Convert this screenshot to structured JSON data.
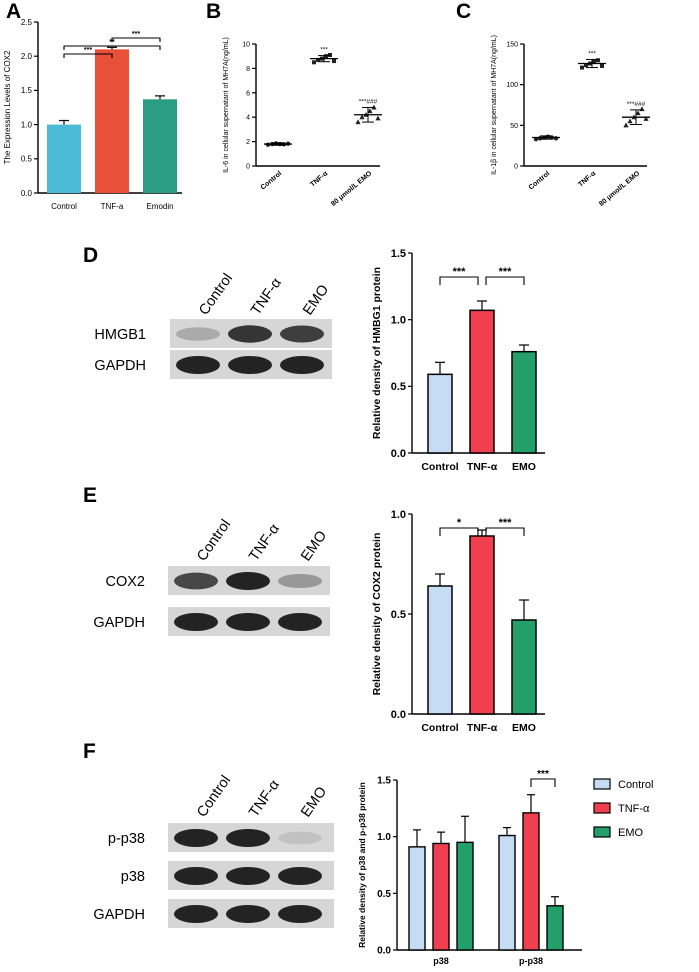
{
  "panel_letters": {
    "a": "A",
    "b": "B",
    "c": "C",
    "d": "D",
    "e": "E",
    "f": "F"
  },
  "colors": {
    "control": "#4cbbd5",
    "tnf": "#e8503a",
    "emodin": "#2a9d82",
    "light_blue": "#c5dcf4",
    "red": "#f04050",
    "green": "#23a06a",
    "dots": "#222222"
  },
  "chart_data": [
    {
      "panel": "A",
      "type": "bar",
      "ylabel": "The Expression Levels of COX2",
      "categories": [
        "Control",
        "TNF-a",
        "Emodin"
      ],
      "values": [
        1.0,
        2.1,
        1.37
      ],
      "errors": [
        0.06,
        0.03,
        0.05
      ],
      "colors": [
        "#4cbbd5",
        "#e8503a",
        "#2a9d82"
      ],
      "ylim": [
        0,
        2.5
      ],
      "yticks": [
        "0.0",
        "0.5",
        "1.0",
        "1.5",
        "2.0",
        "2.5"
      ],
      "significance": [
        {
          "from": 0,
          "to": 1,
          "label": "***"
        },
        {
          "from": 0,
          "to": 2,
          "label": "**"
        },
        {
          "from": 1,
          "to": 2,
          "label": "***"
        }
      ]
    },
    {
      "panel": "B",
      "type": "scatter",
      "ylabel": "IL-6 in cellular supernatant of MH7A(ng/mL)",
      "categories": [
        "Control",
        "TNF-α",
        "80 μmol/L EMO"
      ],
      "means": [
        1.8,
        8.8,
        4.2
      ],
      "sd": [
        0.1,
        0.25,
        0.6
      ],
      "points": [
        [
          1.75,
          1.8,
          1.85,
          1.8,
          1.78,
          1.83
        ],
        [
          8.5,
          8.7,
          8.8,
          9.0,
          9.1,
          8.6
        ],
        [
          3.6,
          4.0,
          4.2,
          4.5,
          4.8,
          3.9
        ]
      ],
      "markers": [
        "circle",
        "square",
        "triangle"
      ],
      "ylim": [
        0,
        10
      ],
      "yticks": [
        "0",
        "2",
        "4",
        "6",
        "8",
        "10"
      ],
      "annotations": [
        "",
        "***",
        "***###"
      ]
    },
    {
      "panel": "C",
      "type": "scatter",
      "ylabel": "IL-1β in cellular supernatant of MH7A(ng/mL)",
      "categories": [
        "Control",
        "TNF-α",
        "80 μmol/L EMO"
      ],
      "means": [
        35,
        126,
        60
      ],
      "sd": [
        2,
        5,
        9
      ],
      "points": [
        [
          33,
          34,
          35,
          36,
          35,
          34
        ],
        [
          121,
          124,
          126,
          128,
          130,
          123
        ],
        [
          50,
          55,
          60,
          65,
          70,
          58
        ]
      ],
      "markers": [
        "circle",
        "square",
        "triangle"
      ],
      "ylim": [
        0,
        150
      ],
      "yticks": [
        "0",
        "50",
        "100",
        "150"
      ],
      "annotations": [
        "",
        "***",
        "***###"
      ]
    },
    {
      "panel": "D",
      "type": "bar",
      "ylabel": "Relative density of HMBG1 protein",
      "categories": [
        "Control",
        "TNF-α",
        "EMO"
      ],
      "values": [
        0.59,
        1.07,
        0.76
      ],
      "errors": [
        0.09,
        0.07,
        0.05
      ],
      "colors": [
        "#c5dcf4",
        "#f04050",
        "#23a06a"
      ],
      "ylim": [
        0,
        1.5
      ],
      "yticks": [
        "0.0",
        "0.5",
        "1.0",
        "1.5"
      ],
      "significance": [
        {
          "from": 0,
          "to": 1,
          "label": "***"
        },
        {
          "from": 1,
          "to": 2,
          "label": "***"
        }
      ]
    },
    {
      "panel": "E",
      "type": "bar",
      "ylabel": "Relative density of COX2  protein",
      "categories": [
        "Control",
        "TNF-α",
        "EMO"
      ],
      "values": [
        0.64,
        0.89,
        0.47
      ],
      "errors": [
        0.06,
        0.03,
        0.1
      ],
      "colors": [
        "#c5dcf4",
        "#f04050",
        "#23a06a"
      ],
      "ylim": [
        0,
        1.0
      ],
      "yticks": [
        "0.0",
        "0.5",
        "1.0"
      ],
      "significance": [
        {
          "from": 0,
          "to": 1,
          "label": "*"
        },
        {
          "from": 1,
          "to": 2,
          "label": "***"
        }
      ]
    },
    {
      "panel": "F",
      "type": "bar",
      "ylabel": "Relative density of p38 and p-p38 protein",
      "categories": [
        "p38",
        "p-p38"
      ],
      "series": [
        {
          "name": "Control",
          "values": [
            0.91,
            1.01
          ],
          "errors": [
            0.15,
            0.07
          ],
          "color": "#c5dcf4"
        },
        {
          "name": "TNF-α",
          "values": [
            0.94,
            1.21
          ],
          "errors": [
            0.1,
            0.16
          ],
          "color": "#f04050"
        },
        {
          "name": "EMO",
          "values": [
            0.95,
            0.39
          ],
          "errors": [
            0.23,
            0.08
          ],
          "color": "#23a06a"
        }
      ],
      "ylim": [
        0,
        1.5
      ],
      "yticks": [
        "0.0",
        "0.5",
        "1.0",
        "1.5"
      ],
      "significance": [
        {
          "group": 1,
          "from": 1,
          "to": 2,
          "label": "***"
        }
      ],
      "legend": "right"
    }
  ],
  "blots": {
    "D": {
      "lanes": [
        "Control",
        "TNF-α",
        "EMO"
      ],
      "rows": [
        {
          "label": "HMGB1",
          "intensity": [
            0.25,
            0.9,
            0.85
          ]
        },
        {
          "label": "GAPDH",
          "intensity": [
            1,
            1,
            1
          ]
        }
      ]
    },
    "E": {
      "lanes": [
        "Control",
        "TNF-α",
        "EMO"
      ],
      "rows": [
        {
          "label": "COX2",
          "intensity": [
            0.8,
            1,
            0.35
          ]
        },
        {
          "label": "GAPDH",
          "intensity": [
            1,
            1,
            1
          ]
        }
      ]
    },
    "F": {
      "lanes": [
        "Control",
        "TNF-α",
        "EMO"
      ],
      "rows": [
        {
          "label": "p-p38",
          "intensity": [
            1,
            1,
            0.12
          ]
        },
        {
          "label": "p38",
          "intensity": [
            1,
            1,
            1
          ]
        },
        {
          "label": "GAPDH",
          "intensity": [
            1,
            1,
            1
          ]
        }
      ]
    }
  }
}
